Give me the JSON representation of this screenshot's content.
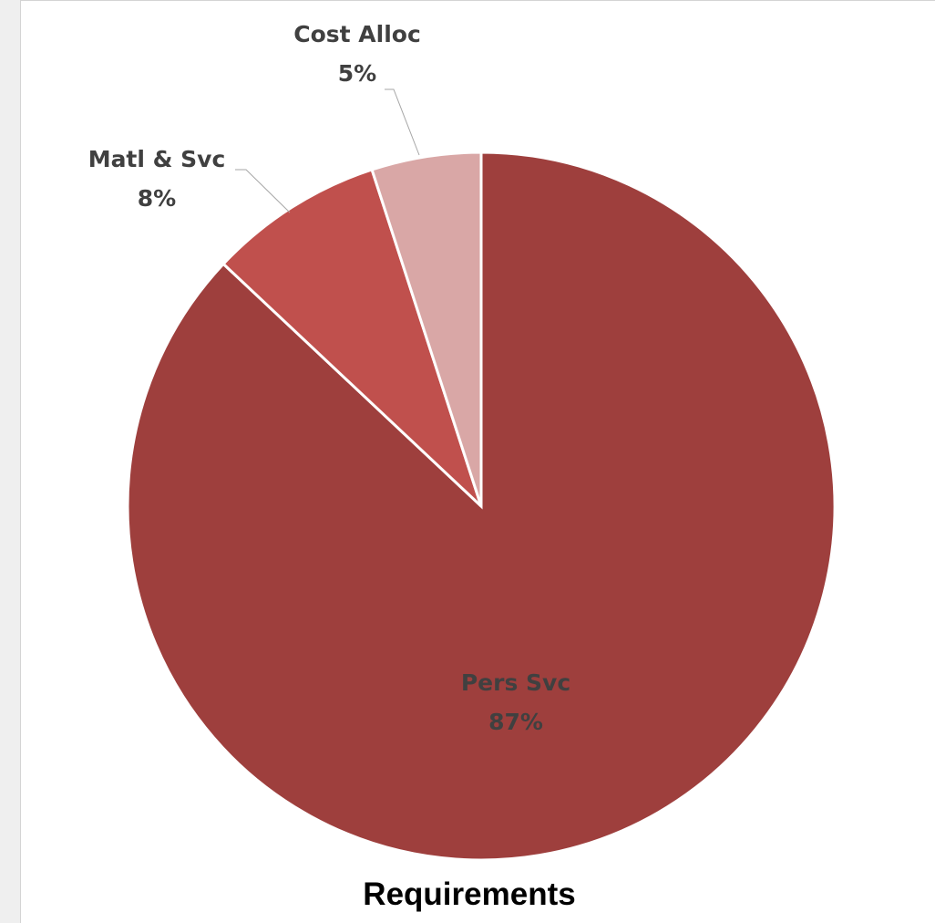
{
  "chart_data": {
    "type": "pie",
    "title": "",
    "caption": "Requirements",
    "categories": [
      "Pers Svc",
      "Matl & Svc",
      "Cost Alloc"
    ],
    "values": [
      87,
      8,
      5
    ],
    "value_labels": [
      "87%",
      "8%",
      "5%"
    ],
    "colors": [
      "#9e3f3d",
      "#c0504d",
      "#d9a7a6"
    ],
    "label_color": "#404040",
    "legend": "none"
  }
}
